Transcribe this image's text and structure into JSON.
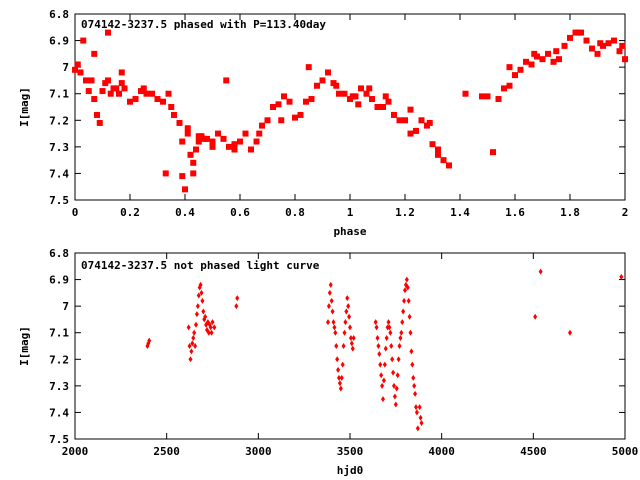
{
  "chart_data": [
    {
      "type": "scatter",
      "title": "074142-3237.5 phased with P=113.40day",
      "xlabel": "phase",
      "ylabel": "I[mag]",
      "xlim": [
        0,
        2
      ],
      "ylim": [
        6.8,
        7.5
      ],
      "y_reversed": true,
      "xticks": [
        "0",
        "0.2",
        "0.4",
        "0.6",
        "0.8",
        "1",
        "1.2",
        "1.4",
        "1.6",
        "1.8",
        "2"
      ],
      "yticks": [
        "6.8",
        "6.9",
        "7",
        "7.1",
        "7.2",
        "7.3",
        "7.4",
        "7.5"
      ],
      "color": "#ff0000",
      "marker": "star",
      "series": [
        {
          "x": [
            0.0,
            0.01,
            0.02,
            0.04,
            0.05,
            0.06,
            0.07,
            0.08,
            0.09,
            0.1,
            0.11,
            0.12,
            0.13,
            0.14,
            0.15,
            0.16,
            0.17,
            0.18,
            0.2,
            0.22,
            0.24,
            0.25,
            0.26,
            0.28,
            0.3,
            0.32,
            0.34,
            0.35,
            0.36,
            0.38,
            0.39,
            0.4,
            0.41,
            0.42,
            0.43,
            0.44,
            0.45,
            0.46,
            0.48,
            0.5,
            0.52,
            0.54,
            0.55,
            0.56,
            0.58,
            0.6,
            0.62,
            0.64,
            0.66,
            0.68,
            0.7,
            0.72,
            0.74,
            0.76,
            0.78,
            0.8,
            0.82,
            0.84,
            0.86,
            0.88,
            0.9,
            0.92,
            0.94,
            0.96,
            0.98,
            1.0,
            1.02,
            1.04,
            1.06,
            1.08,
            1.1,
            1.12,
            1.14,
            1.16,
            1.18,
            1.2,
            1.22,
            1.24,
            1.26,
            1.28,
            1.3,
            1.32,
            1.34,
            1.36,
            1.52,
            1.54,
            1.56,
            1.58,
            1.6,
            1.62,
            1.64,
            1.66,
            1.68,
            1.7,
            1.72,
            1.74,
            1.76,
            1.78,
            1.8,
            1.82,
            1.84,
            1.86,
            1.88,
            1.9,
            1.92,
            1.94,
            1.96,
            1.98,
            2.0,
            0.03,
            0.07,
            0.12,
            0.17,
            0.33,
            0.39,
            0.41,
            0.43,
            0.45,
            0.47,
            0.5,
            0.58,
            0.67,
            0.75,
            0.85,
            0.95,
            1.01,
            1.03,
            1.07,
            1.13,
            1.22,
            1.29,
            1.32,
            1.42,
            1.48,
            1.5,
            1.58,
            1.67,
            1.75,
            1.83,
            1.91,
            1.99
          ],
          "y": [
            7.01,
            6.99,
            7.02,
            7.05,
            7.09,
            7.05,
            7.12,
            7.18,
            7.21,
            7.09,
            7.06,
            7.05,
            7.1,
            7.08,
            7.08,
            7.1,
            7.06,
            7.08,
            7.13,
            7.12,
            7.09,
            7.08,
            7.1,
            7.1,
            7.12,
            7.13,
            7.1,
            7.15,
            7.18,
            7.21,
            7.28,
            7.46,
            7.25,
            7.33,
            7.4,
            7.31,
            7.28,
            7.26,
            7.27,
            7.28,
            7.25,
            7.27,
            7.05,
            7.3,
            7.31,
            7.28,
            7.25,
            7.31,
            7.28,
            7.22,
            7.2,
            7.15,
            7.14,
            7.11,
            7.13,
            7.19,
            7.18,
            7.13,
            7.12,
            7.07,
            7.05,
            7.02,
            7.06,
            7.1,
            7.1,
            7.12,
            7.11,
            7.08,
            7.1,
            7.12,
            7.15,
            7.15,
            7.13,
            7.18,
            7.2,
            7.2,
            7.25,
            7.24,
            7.2,
            7.22,
            7.29,
            7.33,
            7.35,
            7.37,
            7.32,
            7.12,
            7.08,
            7.07,
            7.03,
            7.01,
            6.98,
            6.99,
            6.96,
            6.97,
            6.95,
            6.98,
            6.97,
            6.92,
            6.89,
            6.87,
            6.87,
            6.9,
            6.93,
            6.95,
            6.92,
            6.91,
            6.9,
            6.94,
            6.97,
            6.9,
            6.95,
            6.87,
            7.02,
            7.4,
            7.41,
            7.23,
            7.36,
            7.26,
            7.27,
            7.3,
            7.29,
            7.25,
            7.2,
            7.0,
            7.07,
            7.11,
            7.14,
            7.08,
            7.11,
            7.16,
            7.21,
            7.31,
            7.1,
            7.11,
            7.11,
            7.0,
            6.95,
            6.94,
            6.87,
            6.91,
            6.92
          ]
        }
      ]
    },
    {
      "type": "scatter",
      "title": "074142-3237.5 not phased light curve",
      "xlabel": "hjd0",
      "ylabel": "I[mag]",
      "xlim": [
        2000,
        5000
      ],
      "ylim": [
        6.8,
        7.5
      ],
      "y_reversed": true,
      "xticks": [
        "2000",
        "2500",
        "3000",
        "3500",
        "4000",
        "4500",
        "5000"
      ],
      "yticks": [
        "6.8",
        "6.9",
        "7",
        "7.1",
        "7.2",
        "7.3",
        "7.4",
        "7.5"
      ],
      "color": "#ff0000",
      "marker": "diamond",
      "series": [
        {
          "x": [
            2395,
            2400,
            2405,
            2620,
            2625,
            2630,
            2635,
            2640,
            2645,
            2650,
            2655,
            2660,
            2665,
            2670,
            2675,
            2680,
            2685,
            2690,
            2695,
            2700,
            2705,
            2710,
            2715,
            2720,
            2725,
            2730,
            2735,
            2740,
            2745,
            2750,
            2760,
            2880,
            2885,
            3380,
            3385,
            3390,
            3395,
            3400,
            3405,
            3410,
            3415,
            3420,
            3425,
            3430,
            3435,
            3440,
            3445,
            3450,
            3455,
            3460,
            3465,
            3470,
            3475,
            3480,
            3485,
            3490,
            3495,
            3500,
            3505,
            3510,
            3515,
            3520,
            3640,
            3645,
            3650,
            3655,
            3660,
            3665,
            3670,
            3675,
            3680,
            3685,
            3690,
            3695,
            3700,
            3705,
            3710,
            3715,
            3720,
            3725,
            3730,
            3735,
            3740,
            3745,
            3750,
            3755,
            3760,
            3765,
            3770,
            3775,
            3780,
            3785,
            3790,
            3795,
            3800,
            3805,
            3810,
            3815,
            3820,
            3825,
            3830,
            3835,
            3840,
            3845,
            3850,
            3855,
            3860,
            3865,
            3870,
            3880,
            3885,
            3890,
            4510,
            4540,
            4700,
            4980
          ],
          "y": [
            7.15,
            7.14,
            7.13,
            7.08,
            7.15,
            7.2,
            7.17,
            7.14,
            7.12,
            7.1,
            7.15,
            7.07,
            7.03,
            7.0,
            6.96,
            6.93,
            6.92,
            6.95,
            6.98,
            7.02,
            7.05,
            7.04,
            7.07,
            7.09,
            7.06,
            7.1,
            7.07,
            7.08,
            7.1,
            7.06,
            7.08,
            7.0,
            6.97,
            7.06,
            7.0,
            6.95,
            6.92,
            6.98,
            7.02,
            7.06,
            7.08,
            7.1,
            7.15,
            7.2,
            7.24,
            7.27,
            7.29,
            7.31,
            7.27,
            7.22,
            7.15,
            7.1,
            7.06,
            7.02,
            6.97,
            7.0,
            7.04,
            7.08,
            7.12,
            7.14,
            7.16,
            7.12,
            7.06,
            7.08,
            7.12,
            7.15,
            7.18,
            7.22,
            7.26,
            7.3,
            7.35,
            7.28,
            7.22,
            7.16,
            7.12,
            7.08,
            7.06,
            7.08,
            7.1,
            7.15,
            7.2,
            7.25,
            7.3,
            7.34,
            7.37,
            7.31,
            7.26,
            7.2,
            7.15,
            7.12,
            7.1,
            7.06,
            7.02,
            6.98,
            6.94,
            6.92,
            6.9,
            6.93,
            6.98,
            7.04,
            7.1,
            7.17,
            7.22,
            7.27,
            7.3,
            7.33,
            7.38,
            7.4,
            7.46,
            7.38,
            7.42,
            7.44,
            7.04,
            6.87,
            7.1,
            6.89
          ]
        }
      ]
    }
  ]
}
